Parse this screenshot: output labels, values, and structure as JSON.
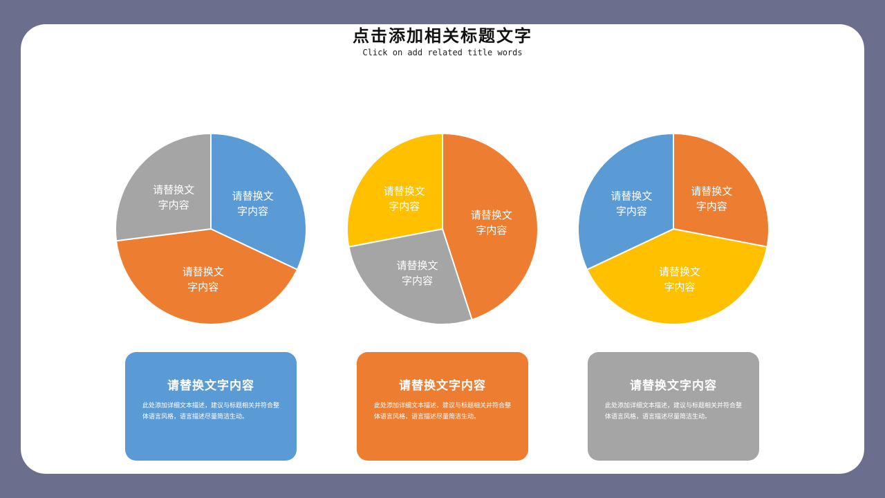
{
  "header": {
    "title": "点击添加相关标题文字",
    "subtitle": "Click on add related title words"
  },
  "colors": {
    "blue": "#5b9bd5",
    "orange": "#ed7d31",
    "gray": "#a5a5a5",
    "yellow": "#ffc000",
    "background": "#6b6e8d"
  },
  "chart_data": [
    {
      "type": "pie",
      "start_angle_deg": 0,
      "slices": [
        {
          "label": "请替换文字内容",
          "value": 32,
          "color": "#5b9bd5"
        },
        {
          "label": "请替换文字内容",
          "value": 41,
          "color": "#ed7d31"
        },
        {
          "label": "请替换文字内容",
          "value": 27,
          "color": "#a5a5a5"
        }
      ]
    },
    {
      "type": "pie",
      "start_angle_deg": 0,
      "slices": [
        {
          "label": "请替换文字内容",
          "value": 45,
          "color": "#ed7d31"
        },
        {
          "label": "请替换文字内容",
          "value": 27,
          "color": "#a5a5a5"
        },
        {
          "label": "请替换文字内容",
          "value": 28,
          "color": "#ffc000"
        }
      ]
    },
    {
      "type": "pie",
      "start_angle_deg": 0,
      "slices": [
        {
          "label": "请替换文字内容",
          "value": 28,
          "color": "#ed7d31"
        },
        {
          "label": "请替换文字内容",
          "value": 40,
          "color": "#ffc000"
        },
        {
          "label": "请替换文字内容",
          "value": 32,
          "color": "#5b9bd5"
        }
      ]
    }
  ],
  "cards": [
    {
      "title": "请替换文字内容",
      "description": "此处添加详细文本描述，建议与标题相关并符合整体语言风格，语言描述尽量简洁生动。",
      "color": "#5b9bd5"
    },
    {
      "title": "请替换文字内容",
      "description": "此处添加详细文本描述，建议与标题相关并符合整体语言风格，语言描述尽量简洁生动。",
      "color": "#ed7d31"
    },
    {
      "title": "请替换文字内容",
      "description": "此处添加详细文本描述，建议与标题相关并符合整体语言风格，语言描述尽量简洁生动。",
      "color": "#a5a5a5"
    }
  ]
}
